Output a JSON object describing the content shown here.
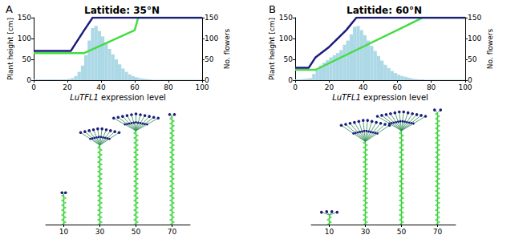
{
  "chart_data": [
    {
      "panel": "A",
      "type": "histogram",
      "title": "Latitide: 35°N",
      "x_label": "LuTFL1 expression level",
      "y_label": "Plant height [cm]",
      "y2_label": "No. flowers",
      "xlim": [
        0,
        100
      ],
      "xticks": [
        0,
        20,
        40,
        60,
        80,
        100
      ],
      "ylim": [
        0,
        150
      ],
      "yticks": [
        0,
        50,
        100,
        150
      ],
      "y2lim": [
        0,
        150
      ],
      "y2ticks": [
        0,
        50,
        100,
        150
      ],
      "bins": [
        0,
        2,
        4,
        6,
        8,
        10,
        12,
        14,
        16,
        18,
        20,
        22,
        24,
        26,
        28,
        30,
        32,
        34,
        36,
        38,
        40,
        42,
        44,
        46,
        48,
        50,
        52,
        54,
        56,
        58,
        60,
        62,
        64,
        66,
        68,
        70,
        72,
        74,
        76,
        78,
        80,
        82,
        84,
        86,
        88,
        90,
        92,
        94,
        96,
        98,
        100
      ],
      "counts": [
        2,
        2,
        2,
        2,
        2,
        2,
        2,
        2,
        2,
        2,
        3,
        5,
        10,
        20,
        35,
        60,
        95,
        125,
        130,
        118,
        105,
        90,
        75,
        62,
        50,
        38,
        28,
        20,
        14,
        10,
        7,
        5,
        4,
        3,
        2,
        1,
        1,
        1,
        1,
        1,
        1,
        1,
        1,
        1,
        1,
        1,
        1,
        1,
        1,
        1
      ],
      "color": "#add8e6",
      "series": [
        {
          "type": "line",
          "color": "#1c1c7c",
          "x": [
            0,
            22,
            30,
            35,
            100
          ],
          "values": [
            70,
            70,
            120,
            150,
            150
          ]
        },
        {
          "type": "line",
          "color": "#44dd44",
          "x": [
            0,
            30,
            60,
            62,
            100
          ],
          "values": [
            65,
            65,
            120,
            150,
            150
          ]
        }
      ],
      "plants": {
        "categories": [
          10,
          30,
          50,
          70
        ],
        "height": [
          27,
          80,
          92,
          92
        ],
        "crown_width": [
          3,
          32,
          37,
          4
        ],
        "crown_depth": [
          2,
          14,
          14,
          2
        ],
        "ylim": [
          0,
          100
        ],
        "tick_labels": "x"
      }
    },
    {
      "panel": "B",
      "type": "histogram",
      "title": "Latitide: 60°N",
      "x_label": "LuTFL1 expression level",
      "y_label": "Plant height [cm]",
      "y2_label": "No. flowers",
      "xlim": [
        0,
        100
      ],
      "xticks": [
        0,
        20,
        40,
        60,
        80,
        100
      ],
      "ylim": [
        0,
        150
      ],
      "yticks": [
        0,
        50,
        100,
        150
      ],
      "y2lim": [
        0,
        150
      ],
      "y2ticks": [
        0,
        50,
        100,
        150
      ],
      "bins": [
        0,
        2,
        4,
        6,
        8,
        10,
        12,
        14,
        16,
        18,
        20,
        22,
        24,
        26,
        28,
        30,
        32,
        34,
        36,
        38,
        40,
        42,
        44,
        46,
        48,
        50,
        52,
        54,
        56,
        58,
        60,
        62,
        64,
        66,
        68,
        70,
        72,
        74,
        76,
        78,
        80,
        82,
        84,
        86,
        88,
        90,
        92,
        94,
        96,
        98,
        100
      ],
      "counts": [
        2,
        2,
        3,
        4,
        5,
        15,
        25,
        35,
        42,
        48,
        55,
        60,
        65,
        72,
        85,
        95,
        110,
        128,
        130,
        120,
        108,
        95,
        82,
        70,
        58,
        47,
        37,
        29,
        22,
        17,
        13,
        10,
        8,
        6,
        4,
        3,
        2,
        2,
        1,
        1,
        1,
        1,
        1,
        1,
        1,
        1,
        1,
        1,
        1,
        1
      ],
      "color": "#add8e6",
      "series": [
        {
          "type": "line",
          "color": "#1c1c7c",
          "x": [
            0,
            8,
            12,
            20,
            30,
            36,
            100
          ],
          "values": [
            30,
            30,
            55,
            80,
            120,
            150,
            150
          ]
        },
        {
          "type": "line",
          "color": "#44dd44",
          "x": [
            0,
            12,
            75,
            100
          ],
          "values": [
            25,
            25,
            150,
            150
          ]
        }
      ],
      "plants": {
        "categories": [
          10,
          30,
          50,
          70
        ],
        "height": [
          11,
          87,
          94,
          96
        ],
        "crown_width": [
          13,
          40,
          40,
          5
        ],
        "crown_depth": [
          3,
          18,
          16,
          3
        ],
        "ylim": [
          0,
          100
        ],
        "tick_labels": "x"
      }
    }
  ]
}
